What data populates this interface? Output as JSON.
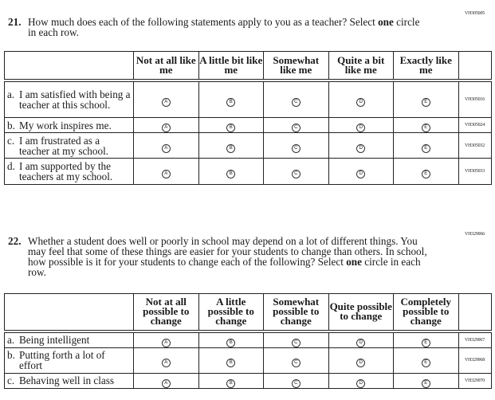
{
  "q21": {
    "code": "VH305005",
    "number": "21.",
    "text_pre": "How much does each of the following statements apply to you as a teacher? Select ",
    "bold": "one",
    "text_post": " circle in each row.",
    "columns": [
      "Not at all like me",
      "A little bit like me",
      "Somewhat like me",
      "Quite a bit like me",
      "Exactly like me"
    ],
    "rows": [
      {
        "letter": "a.",
        "text": "I am satisfied with being a teacher at this school.",
        "id": "VH305016"
      },
      {
        "letter": "b.",
        "text": "My work inspires me.",
        "id": "VH305024"
      },
      {
        "letter": "c.",
        "text": "I am frustrated as a teacher at my school.",
        "id": "VH305032"
      },
      {
        "letter": "d.",
        "text": "I am supported by the teachers at my school.",
        "id": "VH305033"
      }
    ]
  },
  "q22": {
    "code": "VH329966",
    "number": "22.",
    "text_pre": "Whether a student does well or poorly in school may depend on a lot of different things. You may feel that some of these things are easier for your students to change than others. In school, how possible is it for your students to change each of the following? Select ",
    "bold": "one",
    "text_post": " circle in each row.",
    "columns": [
      "Not at all possible to change",
      "A little possible to change",
      "Somewhat possible to change",
      "Quite possible to change",
      "Completely possible to change"
    ],
    "rows": [
      {
        "letter": "a.",
        "text": "Being intelligent",
        "id": "VH329967"
      },
      {
        "letter": "b.",
        "text": "Putting forth a lot of effort",
        "id": "VH329968"
      },
      {
        "letter": "c.",
        "text": "Behaving well in class",
        "id": "VH329970"
      }
    ]
  },
  "bubbles": [
    "A",
    "B",
    "C",
    "D",
    "E"
  ]
}
